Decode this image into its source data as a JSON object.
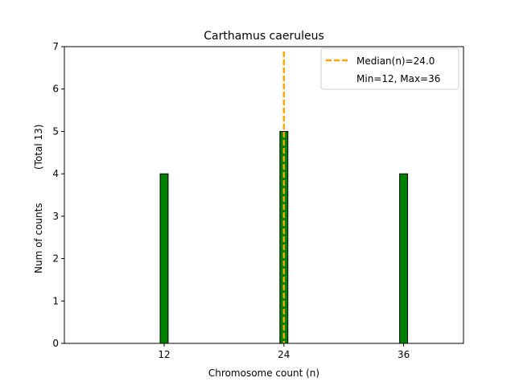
{
  "chart_data": {
    "type": "bar",
    "title": "Carthamus caeruleus",
    "xlabel": "Chromosome count (n)",
    "ylabel": "Num of counts",
    "ylabel_total": "(Total 13)",
    "x": [
      12,
      24,
      36
    ],
    "values": [
      4,
      5,
      4
    ],
    "xlim": [
      2,
      42
    ],
    "ylim": [
      0,
      7
    ],
    "x_ticks": [
      12,
      24,
      36
    ],
    "y_ticks": [
      0,
      1,
      2,
      3,
      4,
      5,
      6,
      7
    ],
    "bar_width": 0.8,
    "bar_color": "#008000",
    "edge_color": "#000000",
    "baseline": [
      2,
      38
    ],
    "median": 24.0,
    "median_color": "#ffa500",
    "legend_position": "top-right",
    "legend": {
      "median_label": "Median(n)=24.0",
      "range_label": "Min=12, Max=36"
    },
    "grid": false
  }
}
